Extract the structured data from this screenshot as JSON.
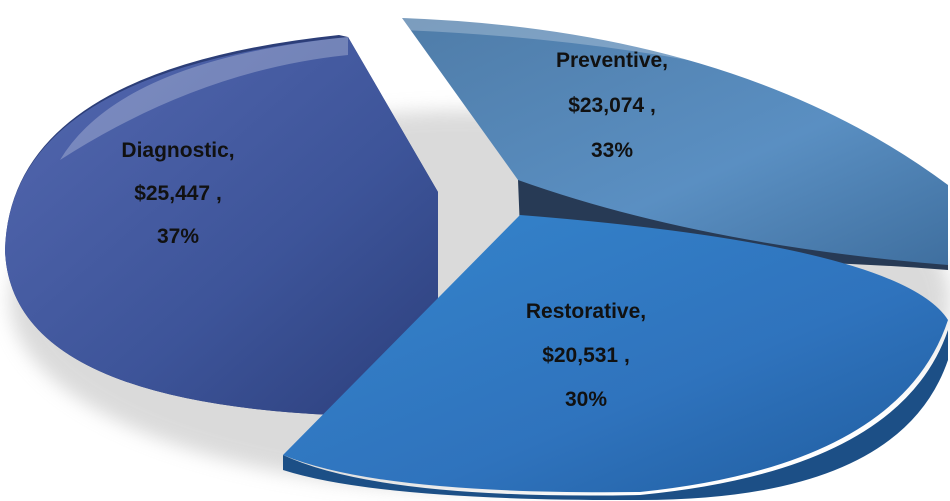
{
  "chart_data": {
    "type": "pie",
    "title": "",
    "slices": [
      {
        "label": "Diagnostic",
        "amount": "$25,447",
        "value": 25447,
        "percent": "37%",
        "color": "#3d5499"
      },
      {
        "label": "Preventive",
        "amount": "$23,074",
        "value": 23074,
        "percent": "33%",
        "color": "#4a7fb3"
      },
      {
        "label": "Restorative",
        "amount": "$20,531",
        "value": 20531,
        "percent": "30%",
        "color": "#2f73bd"
      }
    ],
    "exploded": true,
    "style": "3d",
    "legend": "none"
  }
}
